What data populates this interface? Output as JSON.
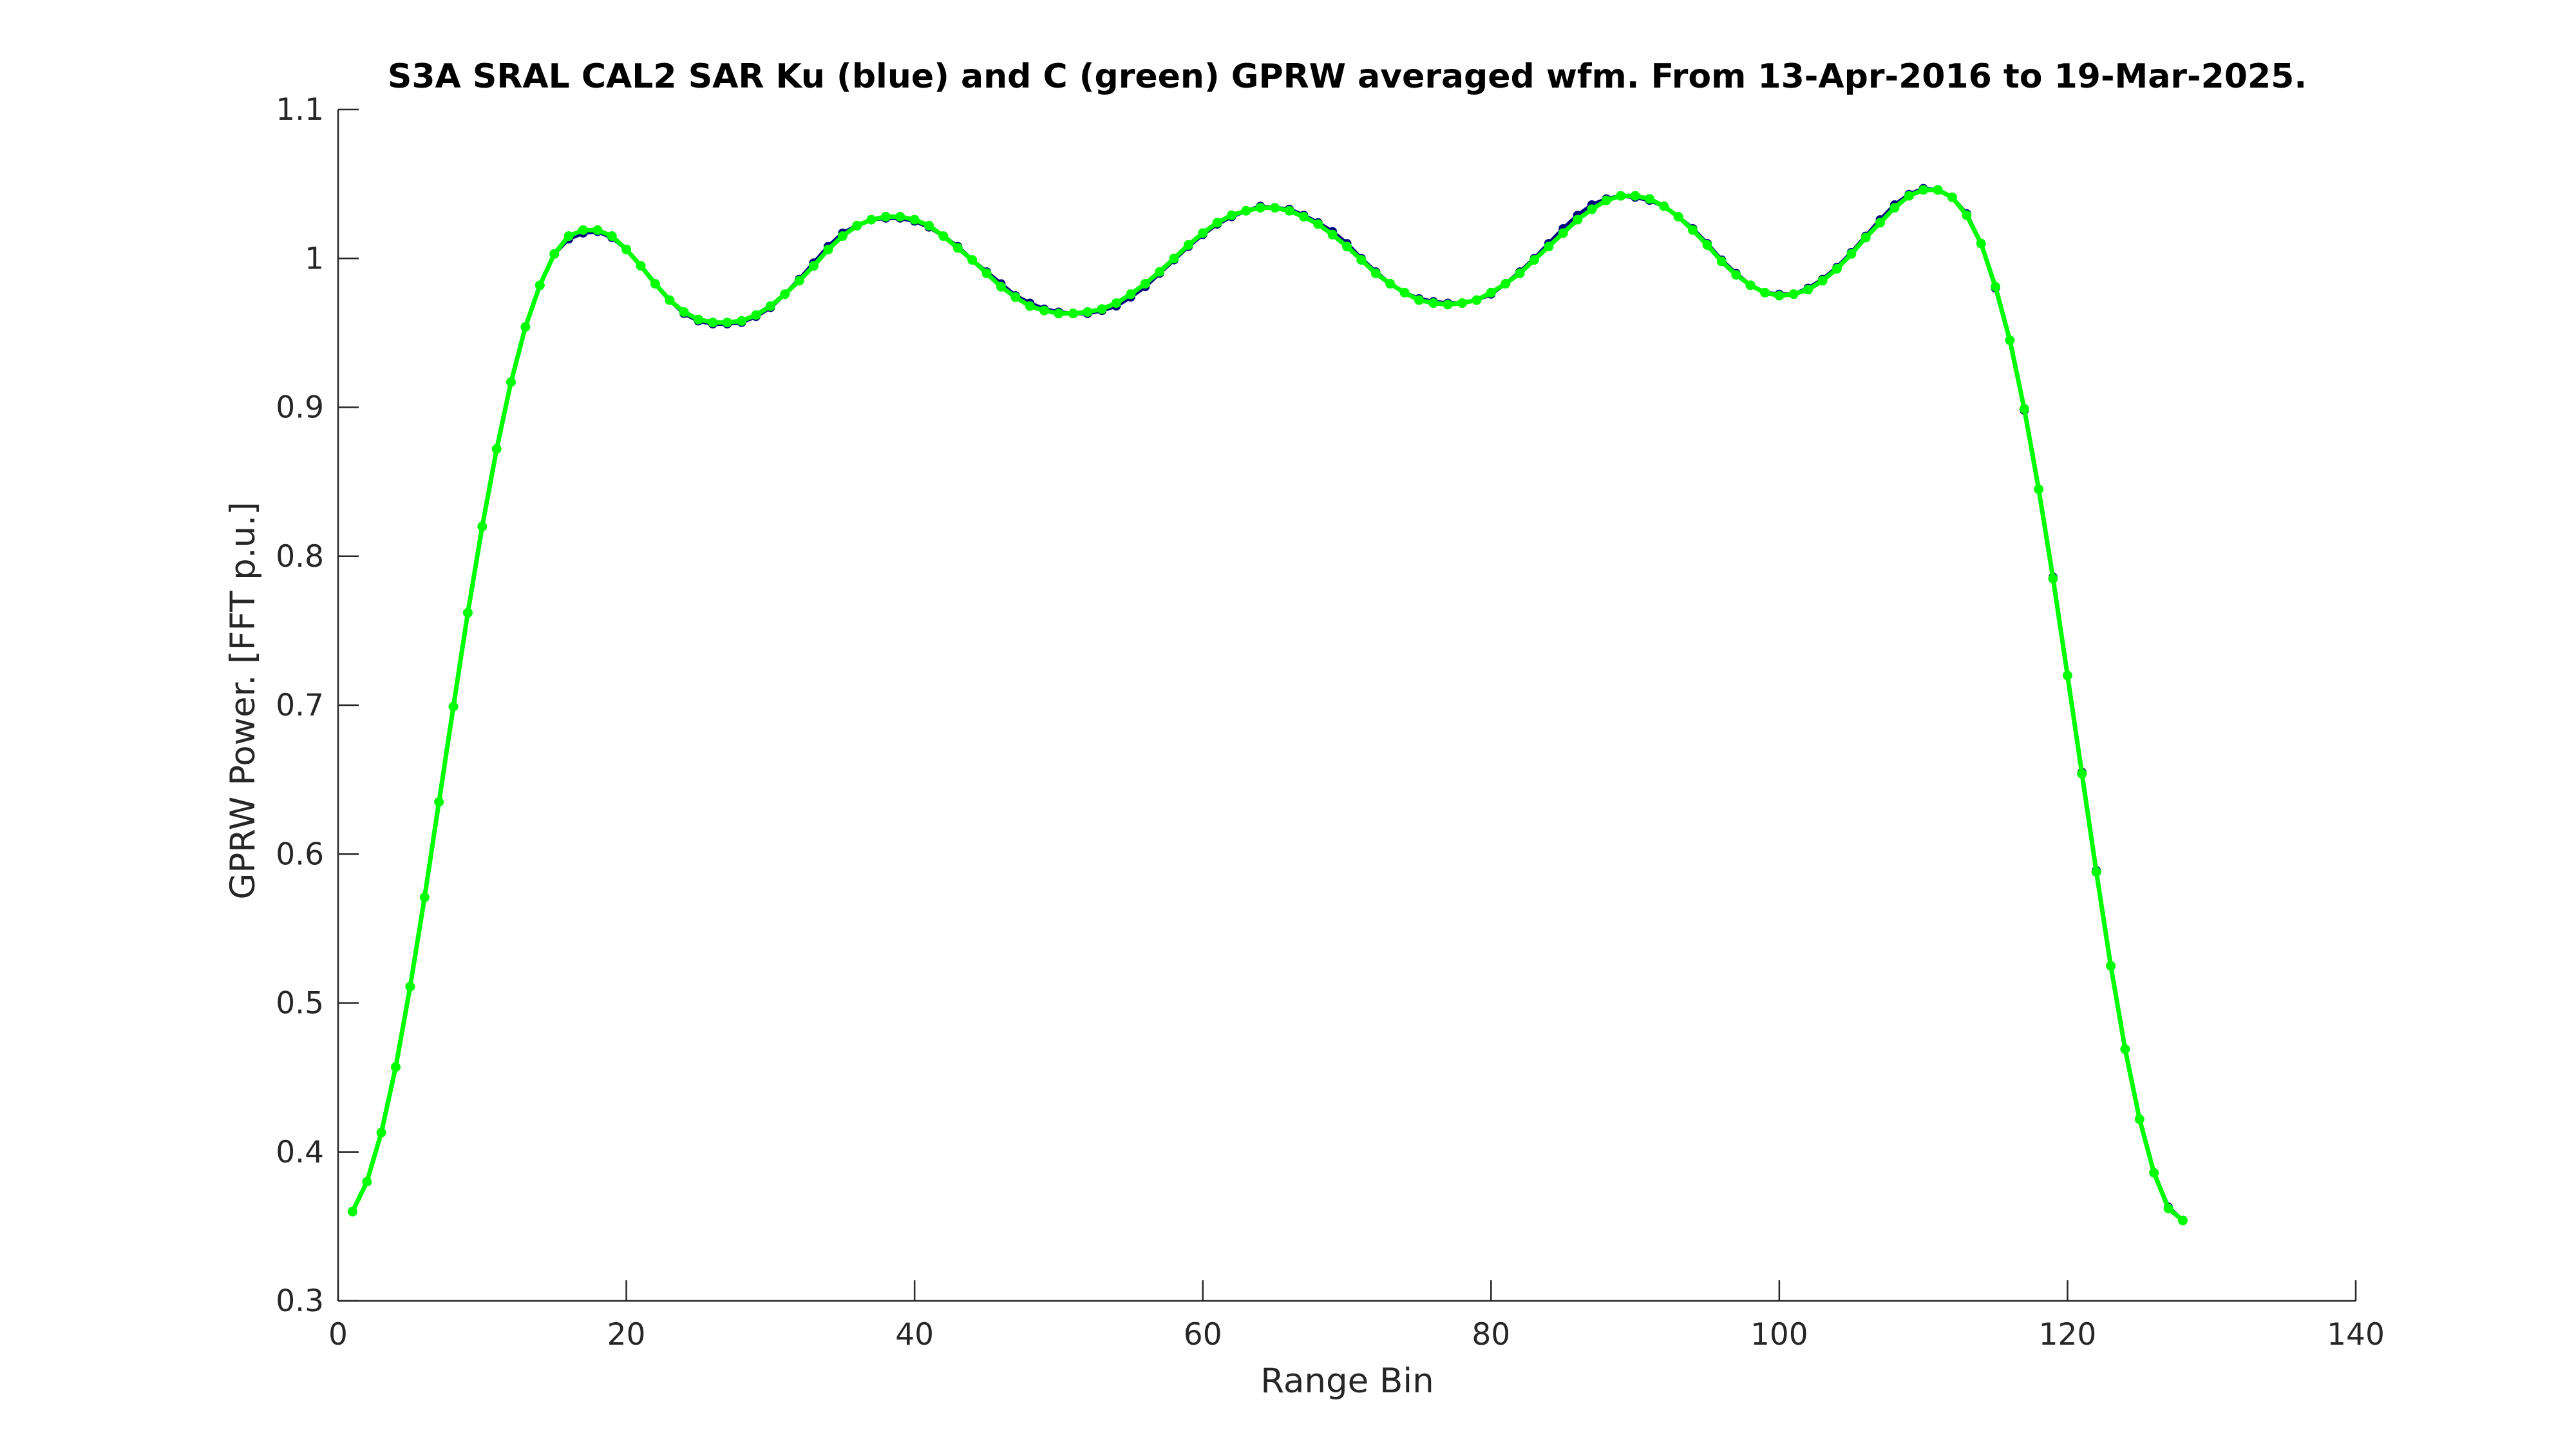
{
  "chart_data": {
    "type": "line",
    "title": "S3A SRAL CAL2 SAR Ku (blue) and C (green) GPRW averaged wfm. From 13-Apr-2016 to 19-Mar-2025.",
    "xlabel": "Range Bin",
    "ylabel": "GPRW Power. [FFT p.u.]",
    "xlim": [
      0,
      140
    ],
    "ylim": [
      0.3,
      1.1
    ],
    "xticks": [
      "0",
      "20",
      "40",
      "60",
      "80",
      "100",
      "120",
      "140"
    ],
    "yticks": [
      "0.3",
      "0.4",
      "0.5",
      "0.6",
      "0.7",
      "0.8",
      "0.9",
      "1",
      "1.1"
    ],
    "grid": false,
    "colors": {
      "ku": "#000080",
      "c": "#00ff00",
      "axis": "#262626"
    },
    "series": [
      {
        "name": "Ku",
        "color": "#000080",
        "x": [
          1,
          2,
          3,
          4,
          5,
          6,
          7,
          8,
          9,
          10,
          11,
          12,
          13,
          14,
          15,
          16,
          17,
          18,
          19,
          20,
          21,
          22,
          23,
          24,
          25,
          26,
          27,
          28,
          29,
          30,
          31,
          32,
          33,
          34,
          35,
          36,
          37,
          38,
          39,
          40,
          41,
          42,
          43,
          44,
          45,
          46,
          47,
          48,
          49,
          50,
          51,
          52,
          53,
          54,
          55,
          56,
          57,
          58,
          59,
          60,
          61,
          62,
          63,
          64,
          65,
          66,
          67,
          68,
          69,
          70,
          71,
          72,
          73,
          74,
          75,
          76,
          77,
          78,
          79,
          80,
          81,
          82,
          83,
          84,
          85,
          86,
          87,
          88,
          89,
          90,
          91,
          92,
          93,
          94,
          95,
          96,
          97,
          98,
          99,
          100,
          101,
          102,
          103,
          104,
          105,
          106,
          107,
          108,
          109,
          110,
          111,
          112,
          113,
          114,
          115,
          116,
          117,
          118,
          119,
          120,
          121,
          122,
          123,
          124,
          125,
          126,
          127,
          128
        ],
        "y": [
          0.36,
          0.38,
          0.413,
          0.457,
          0.511,
          0.571,
          0.635,
          0.699,
          0.762,
          0.82,
          0.872,
          0.917,
          0.954,
          0.982,
          1.003,
          1.013,
          1.017,
          1.018,
          1.014,
          1.006,
          0.995,
          0.983,
          0.972,
          0.963,
          0.958,
          0.956,
          0.956,
          0.957,
          0.961,
          0.967,
          0.976,
          0.986,
          0.997,
          1.008,
          1.017,
          1.022,
          1.026,
          1.027,
          1.027,
          1.025,
          1.021,
          1.015,
          1.008,
          0.999,
          0.991,
          0.983,
          0.975,
          0.97,
          0.966,
          0.964,
          0.963,
          0.963,
          0.965,
          0.968,
          0.974,
          0.981,
          0.99,
          0.999,
          1.008,
          1.016,
          1.023,
          1.028,
          1.032,
          1.035,
          1.034,
          1.033,
          1.029,
          1.024,
          1.018,
          1.01,
          1.0,
          0.991,
          0.983,
          0.977,
          0.973,
          0.971,
          0.97,
          0.97,
          0.972,
          0.976,
          0.983,
          0.991,
          1.0,
          1.01,
          1.02,
          1.029,
          1.036,
          1.04,
          1.042,
          1.041,
          1.039,
          1.035,
          1.028,
          1.02,
          1.01,
          0.999,
          0.99,
          0.982,
          0.977,
          0.976,
          0.976,
          0.98,
          0.986,
          0.994,
          1.004,
          1.015,
          1.026,
          1.036,
          1.043,
          1.047,
          1.046,
          1.041,
          1.03,
          1.01,
          0.98,
          0.945,
          0.898,
          0.845,
          0.786,
          0.72,
          0.655,
          0.589,
          0.525,
          0.469,
          0.422,
          0.386,
          0.363,
          0.354
        ]
      },
      {
        "name": "C",
        "color": "#00ff00",
        "x": [
          1,
          2,
          3,
          4,
          5,
          6,
          7,
          8,
          9,
          10,
          11,
          12,
          13,
          14,
          15,
          16,
          17,
          18,
          19,
          20,
          21,
          22,
          23,
          24,
          25,
          26,
          27,
          28,
          29,
          30,
          31,
          32,
          33,
          34,
          35,
          36,
          37,
          38,
          39,
          40,
          41,
          42,
          43,
          44,
          45,
          46,
          47,
          48,
          49,
          50,
          51,
          52,
          53,
          54,
          55,
          56,
          57,
          58,
          59,
          60,
          61,
          62,
          63,
          64,
          65,
          66,
          67,
          68,
          69,
          70,
          71,
          72,
          73,
          74,
          75,
          76,
          77,
          78,
          79,
          80,
          81,
          82,
          83,
          84,
          85,
          86,
          87,
          88,
          89,
          90,
          91,
          92,
          93,
          94,
          95,
          96,
          97,
          98,
          99,
          100,
          101,
          102,
          103,
          104,
          105,
          106,
          107,
          108,
          109,
          110,
          111,
          112,
          113,
          114,
          115,
          116,
          117,
          118,
          119,
          120,
          121,
          122,
          123,
          124,
          125,
          126,
          127,
          128
        ],
        "y": [
          0.36,
          0.38,
          0.413,
          0.457,
          0.511,
          0.571,
          0.635,
          0.699,
          0.762,
          0.82,
          0.872,
          0.917,
          0.954,
          0.982,
          1.003,
          1.015,
          1.019,
          1.019,
          1.015,
          1.006,
          0.995,
          0.983,
          0.972,
          0.964,
          0.959,
          0.957,
          0.957,
          0.958,
          0.962,
          0.968,
          0.976,
          0.985,
          0.995,
          1.006,
          1.015,
          1.022,
          1.026,
          1.028,
          1.028,
          1.026,
          1.022,
          1.015,
          1.007,
          0.999,
          0.99,
          0.981,
          0.974,
          0.968,
          0.965,
          0.963,
          0.963,
          0.964,
          0.966,
          0.97,
          0.976,
          0.983,
          0.991,
          1.0,
          1.009,
          1.017,
          1.024,
          1.029,
          1.032,
          1.034,
          1.034,
          1.032,
          1.028,
          1.023,
          1.016,
          1.008,
          0.999,
          0.99,
          0.983,
          0.977,
          0.972,
          0.97,
          0.969,
          0.97,
          0.972,
          0.977,
          0.983,
          0.99,
          0.999,
          1.008,
          1.017,
          1.026,
          1.033,
          1.039,
          1.042,
          1.042,
          1.04,
          1.035,
          1.028,
          1.019,
          1.009,
          0.998,
          0.989,
          0.982,
          0.977,
          0.975,
          0.976,
          0.979,
          0.985,
          0.993,
          1.003,
          1.014,
          1.024,
          1.034,
          1.042,
          1.046,
          1.046,
          1.041,
          1.029,
          1.01,
          0.981,
          0.945,
          0.899,
          0.845,
          0.785,
          0.72,
          0.654,
          0.588,
          0.525,
          0.469,
          0.422,
          0.386,
          0.362,
          0.354
        ]
      }
    ]
  }
}
